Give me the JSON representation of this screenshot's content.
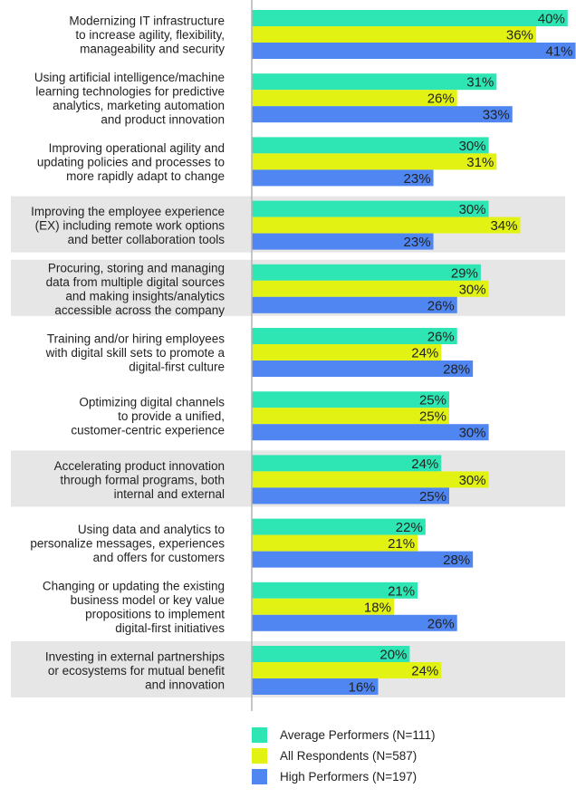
{
  "chart_data": {
    "type": "bar",
    "orientation": "horizontal",
    "categories": [
      [
        "Modernizing IT infrastructure",
        "to increase agility, flexibility,",
        "manageability and security"
      ],
      [
        "Using artificial intelligence/machine",
        "learning technologies for predictive",
        "analytics, marketing automation",
        "and product innovation"
      ],
      [
        "Improving operational agility and",
        "updating policies and processes to",
        "more rapidly adapt to change"
      ],
      [
        "Improving the employee experience",
        "(EX) including remote work options",
        "and better collaboration tools"
      ],
      [
        "Procuring, storing and managing",
        "data from multiple digital sources",
        "and making insights/analytics",
        "accessible across the company"
      ],
      [
        "Training and/or hiring employees",
        "with digital skill sets to promote a",
        "digital-first culture"
      ],
      [
        "Optimizing digital channels",
        "to provide a unified,",
        "customer-centric experience"
      ],
      [
        "Accelerating product innovation",
        "through formal programs, both",
        "internal and external"
      ],
      [
        "Using data and analytics to",
        "personalize messages, experiences",
        "and offers for customers"
      ],
      [
        "Changing or updating the existing",
        "business model or key value",
        "propositions to implement",
        "digital-first initiatives"
      ],
      [
        "Investing in external partnerships",
        "or ecosystems for mutual benefit",
        "and innovation"
      ]
    ],
    "series": [
      {
        "name": "Average Performers (N=111)",
        "color": "#2de6b4",
        "values": [
          40,
          31,
          30,
          30,
          29,
          26,
          25,
          24,
          22,
          21,
          20
        ],
        "labels": [
          "40%",
          "31%",
          "30%",
          "30%",
          "29%",
          "26%",
          "25%",
          "24%",
          "22%",
          "21%",
          "20%"
        ]
      },
      {
        "name": "All Respondents (N=587)",
        "color": "#e2f212",
        "values": [
          36,
          26,
          31,
          34,
          30,
          24,
          25,
          30,
          21,
          18,
          24
        ],
        "labels": [
          "36%",
          "26%",
          "31%",
          "34%",
          "30%",
          "24%",
          "25%",
          "30%",
          "21%",
          "18%",
          "24%"
        ]
      },
      {
        "name": "High Performers (N=197)",
        "color": "#4f86f2",
        "values": [
          41,
          33,
          23,
          23,
          26,
          28,
          30,
          25,
          28,
          26,
          16
        ],
        "labels": [
          "41%",
          "33%",
          "23%",
          "23%",
          "26%",
          "28%",
          "30%",
          "25%",
          "28%",
          "26%",
          "16%"
        ]
      }
    ],
    "shaded_groups": [
      3,
      4,
      7,
      10
    ],
    "shade_color": "#e6e6e6",
    "axis_color": "#b3b3b3",
    "xlim": [
      0,
      43
    ],
    "grid": false,
    "legend_position": "bottom"
  }
}
